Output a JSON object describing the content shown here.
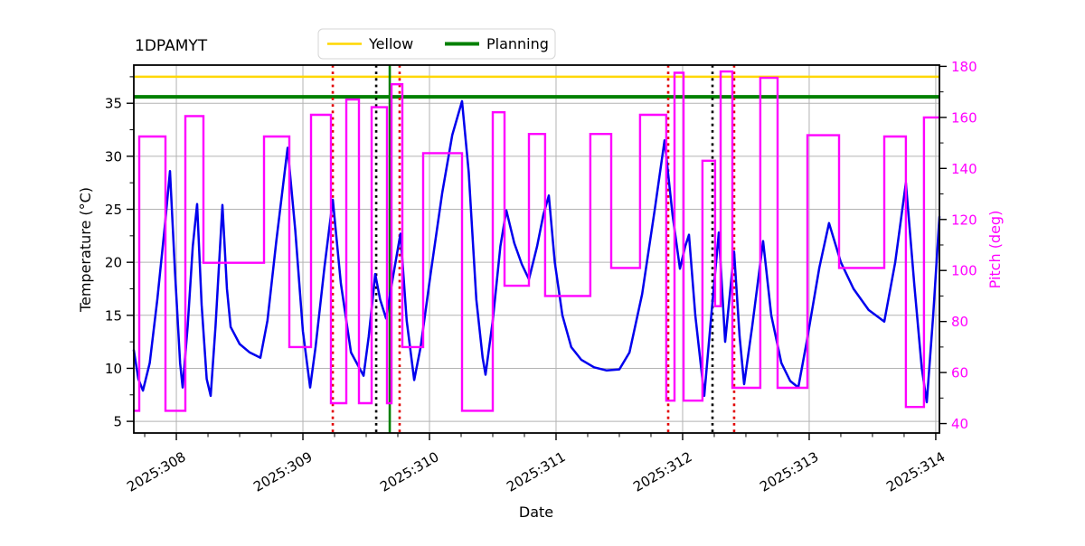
{
  "title": "1DPAMYT",
  "legend": {
    "items": [
      {
        "label": "Yellow",
        "color": "#ffd700",
        "lw": 2.5
      },
      {
        "label": "Planning",
        "color": "#008000",
        "lw": 4
      }
    ]
  },
  "chart_data": {
    "type": "line",
    "title": "1DPAMYT",
    "xlabel": "Date",
    "ylabel_left": "Temperature (°C)",
    "ylabel_right": "Pitch (deg)",
    "x_tick_labels": [
      "2025:308",
      "2025:309",
      "2025:310",
      "2025:311",
      "2025:312",
      "2025:313",
      "2025:314"
    ],
    "x_tick_days": [
      308,
      309,
      310,
      311,
      312,
      313,
      314
    ],
    "x_minor_step_days": 0.25,
    "xlim_days": [
      307.664,
      314.029
    ],
    "ylim_left": [
      3.9,
      38.6
    ],
    "left_ticks": [
      5,
      10,
      15,
      20,
      25,
      30,
      35
    ],
    "ylim_right": [
      36.3,
      180.5
    ],
    "right_ticks": [
      40,
      60,
      80,
      100,
      120,
      140,
      160,
      180
    ],
    "grid": true,
    "legend_position": "upper center",
    "series": [
      {
        "name": "Temperature",
        "axis": "left",
        "color": "#0000ee",
        "style": "line",
        "lw": 2.5,
        "points": [
          [
            307.664,
            11.7
          ],
          [
            307.7,
            9.0
          ],
          [
            307.736,
            7.9
          ],
          [
            307.79,
            10.5
          ],
          [
            307.85,
            16.5
          ],
          [
            307.91,
            23.5
          ],
          [
            307.95,
            28.6
          ],
          [
            307.99,
            19.0
          ],
          [
            308.03,
            10.5
          ],
          [
            308.05,
            8.2
          ],
          [
            308.09,
            14.0
          ],
          [
            308.13,
            21.5
          ],
          [
            308.164,
            25.5
          ],
          [
            308.2,
            16.0
          ],
          [
            308.24,
            9.0
          ],
          [
            308.271,
            7.4
          ],
          [
            308.31,
            14.0
          ],
          [
            308.364,
            25.4
          ],
          [
            308.4,
            17.5
          ],
          [
            308.429,
            13.9
          ],
          [
            308.5,
            12.3
          ],
          [
            308.58,
            11.5
          ],
          [
            308.664,
            11.0
          ],
          [
            308.72,
            14.5
          ],
          [
            308.79,
            22.0
          ],
          [
            308.879,
            30.8
          ],
          [
            308.94,
            23.0
          ],
          [
            309.0,
            13.5
          ],
          [
            309.057,
            8.2
          ],
          [
            309.1,
            12.0
          ],
          [
            309.17,
            19.5
          ],
          [
            309.236,
            25.9
          ],
          [
            309.3,
            18.0
          ],
          [
            309.38,
            11.5
          ],
          [
            309.479,
            9.3
          ],
          [
            309.52,
            13.0
          ],
          [
            309.571,
            18.9
          ],
          [
            309.61,
            16.5
          ],
          [
            309.657,
            14.7
          ],
          [
            309.71,
            18.5
          ],
          [
            309.771,
            22.7
          ],
          [
            309.82,
            14.5
          ],
          [
            309.879,
            8.9
          ],
          [
            309.93,
            12.0
          ],
          [
            310.01,
            19.0
          ],
          [
            310.1,
            26.5
          ],
          [
            310.18,
            32.0
          ],
          [
            310.257,
            35.2
          ],
          [
            310.31,
            28.5
          ],
          [
            310.37,
            16.5
          ],
          [
            310.42,
            11.0
          ],
          [
            310.443,
            9.4
          ],
          [
            310.5,
            14.5
          ],
          [
            310.56,
            21.5
          ],
          [
            310.607,
            24.9
          ],
          [
            310.67,
            21.8
          ],
          [
            310.73,
            19.8
          ],
          [
            310.786,
            18.4
          ],
          [
            310.85,
            21.5
          ],
          [
            310.9,
            24.5
          ],
          [
            310.943,
            26.3
          ],
          [
            310.99,
            20.0
          ],
          [
            311.05,
            15.0
          ],
          [
            311.12,
            12.0
          ],
          [
            311.2,
            10.8
          ],
          [
            311.3,
            10.1
          ],
          [
            311.4,
            9.8
          ],
          [
            311.5,
            9.9
          ],
          [
            311.58,
            11.5
          ],
          [
            311.68,
            17.0
          ],
          [
            311.78,
            25.0
          ],
          [
            311.857,
            31.5
          ],
          [
            311.92,
            24.5
          ],
          [
            311.979,
            19.4
          ],
          [
            312.02,
            21.5
          ],
          [
            312.05,
            22.6
          ],
          [
            312.1,
            15.0
          ],
          [
            312.171,
            7.4
          ],
          [
            312.23,
            15.5
          ],
          [
            312.286,
            22.8
          ],
          [
            312.336,
            12.5
          ],
          [
            312.407,
            21.0
          ],
          [
            312.45,
            13.0
          ],
          [
            312.486,
            8.5
          ],
          [
            312.55,
            14.0
          ],
          [
            312.636,
            22.0
          ],
          [
            312.7,
            15.0
          ],
          [
            312.78,
            10.5
          ],
          [
            312.85,
            8.8
          ],
          [
            312.914,
            8.2
          ],
          [
            312.98,
            12.5
          ],
          [
            313.08,
            19.5
          ],
          [
            313.157,
            23.7
          ],
          [
            313.25,
            20.0
          ],
          [
            313.35,
            17.5
          ],
          [
            313.47,
            15.5
          ],
          [
            313.593,
            14.4
          ],
          [
            313.68,
            20.0
          ],
          [
            313.764,
            27.5
          ],
          [
            313.83,
            18.0
          ],
          [
            313.89,
            10.0
          ],
          [
            313.929,
            6.8
          ],
          [
            313.98,
            15.0
          ],
          [
            314.029,
            24.3
          ]
        ]
      },
      {
        "name": "Pitch",
        "axis": "right",
        "color": "#ff00ff",
        "style": "step",
        "lw": 2.4,
        "end_day": 314.029,
        "points": [
          [
            307.664,
            45
          ],
          [
            307.707,
            152.5
          ],
          [
            307.914,
            45
          ],
          [
            308.071,
            160.5
          ],
          [
            308.214,
            103
          ],
          [
            308.693,
            152.5
          ],
          [
            308.893,
            70
          ],
          [
            309.064,
            161
          ],
          [
            309.221,
            48
          ],
          [
            309.343,
            167
          ],
          [
            309.443,
            48
          ],
          [
            309.543,
            164
          ],
          [
            309.664,
            48
          ],
          [
            309.7,
            173
          ],
          [
            309.786,
            70
          ],
          [
            309.95,
            146
          ],
          [
            310.257,
            45
          ],
          [
            310.5,
            162
          ],
          [
            310.593,
            94
          ],
          [
            310.786,
            153.5
          ],
          [
            310.914,
            90
          ],
          [
            311.271,
            153.5
          ],
          [
            311.436,
            101
          ],
          [
            311.664,
            161
          ],
          [
            311.871,
            49
          ],
          [
            311.936,
            177.5
          ],
          [
            312.007,
            49
          ],
          [
            312.157,
            143
          ],
          [
            312.257,
            86
          ],
          [
            312.3,
            178
          ],
          [
            312.393,
            54
          ],
          [
            312.614,
            175.5
          ],
          [
            312.75,
            54
          ],
          [
            312.986,
            153
          ],
          [
            313.236,
            101
          ],
          [
            313.593,
            152.5
          ],
          [
            313.764,
            46.5
          ],
          [
            313.907,
            160
          ]
        ]
      }
    ],
    "hlines": [
      {
        "label": "Yellow",
        "temp_c": 37.5,
        "color": "#ffd700",
        "lw": 2.5,
        "style": "solid"
      },
      {
        "label": "Planning",
        "temp_c": 35.6,
        "color": "#008000",
        "lw": 4,
        "style": "solid"
      }
    ],
    "vlines": [
      {
        "day": 309.236,
        "color": "#e10000",
        "style": "dotted"
      },
      {
        "day": 309.579,
        "color": "#000000",
        "style": "dotted"
      },
      {
        "day": 309.686,
        "color": "#008000",
        "style": "solid"
      },
      {
        "day": 309.764,
        "color": "#e10000",
        "style": "dotted"
      },
      {
        "day": 311.886,
        "color": "#e10000",
        "style": "dotted"
      },
      {
        "day": 312.236,
        "color": "#000000",
        "style": "dotted"
      },
      {
        "day": 312.407,
        "color": "#e10000",
        "style": "dotted"
      }
    ]
  }
}
